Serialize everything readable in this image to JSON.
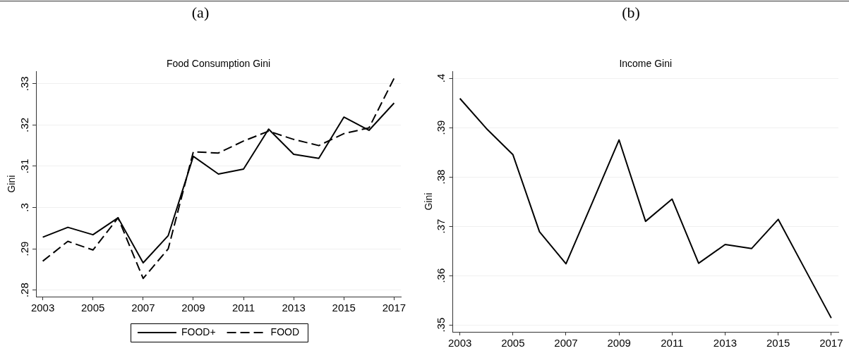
{
  "chart_data": [
    {
      "type": "line",
      "title": "(a)",
      "subtitle": "Food Consumption Gini",
      "ylabel": "Gini",
      "x": [
        2003,
        2004,
        2005,
        2006,
        2007,
        2008,
        2009,
        2010,
        2011,
        2012,
        2013,
        2014,
        2015,
        2016,
        2017
      ],
      "series": [
        {
          "name": "FOOD+",
          "color": "#000000",
          "line_style": "solid",
          "values": [
            0.2928,
            0.2952,
            0.2934,
            0.2975,
            0.2866,
            0.2932,
            0.3124,
            0.3081,
            0.3093,
            0.319,
            0.3129,
            0.3119,
            0.3219,
            0.3187,
            0.3253
          ]
        },
        {
          "name": "FOOD",
          "color": "#000000",
          "line_style": "dashed",
          "values": [
            0.287,
            0.2918,
            0.2897,
            0.2975,
            0.2828,
            0.29,
            0.3135,
            0.3132,
            0.3161,
            0.3185,
            0.3165,
            0.315,
            0.3179,
            0.3193,
            0.3313
          ]
        }
      ],
      "xlim": [
        2002.73,
        2017.27
      ],
      "xticks": [
        2003,
        2005,
        2007,
        2009,
        2011,
        2013,
        2015,
        2017
      ],
      "ylim": [
        0.2784,
        0.333
      ],
      "yticks": [
        {
          "value": 0.28,
          "label": ".28"
        },
        {
          "value": 0.29,
          "label": ".29"
        },
        {
          "value": 0.3,
          "label": ".3"
        },
        {
          "value": 0.31,
          "label": ".31"
        },
        {
          "value": 0.32,
          "label": ".32"
        },
        {
          "value": 0.33,
          "label": ".33"
        }
      ],
      "grid": "y",
      "legend": "bottom"
    },
    {
      "type": "line",
      "title": "(b)",
      "subtitle": "Income Gini",
      "ylabel": "Gini",
      "x": [
        2003,
        2004,
        2005,
        2006,
        2007,
        2008,
        2009,
        2010,
        2011,
        2012,
        2013,
        2014,
        2015,
        2016,
        2017
      ],
      "series": [
        {
          "color": "#000000",
          "values": [
            0.3959,
            0.3898,
            0.3845,
            0.3689,
            0.3624,
            0.3749,
            0.3875,
            0.371,
            0.3755,
            0.3625,
            0.3663,
            0.3655,
            0.3714,
            0.3614,
            0.3514
          ]
        }
      ],
      "xlim": [
        2002.73,
        2017.27
      ],
      "xticks": [
        2003,
        2005,
        2007,
        2009,
        2011,
        2013,
        2015,
        2017
      ],
      "ylim": [
        0.3486,
        0.4014
      ],
      "yticks": [
        {
          "value": 0.35,
          "label": ".35"
        },
        {
          "value": 0.36,
          "label": ".36"
        },
        {
          "value": 0.37,
          "label": ".37"
        },
        {
          "value": 0.38,
          "label": ".38"
        },
        {
          "value": 0.39,
          "label": ".39"
        },
        {
          "value": 0.4,
          "label": ".4"
        }
      ],
      "grid": "y",
      "legend": false
    }
  ]
}
